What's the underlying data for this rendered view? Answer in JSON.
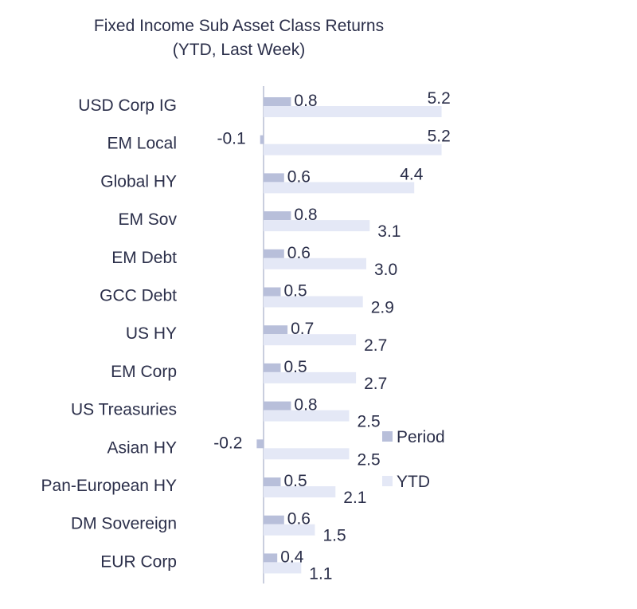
{
  "chart_data": {
    "type": "bar",
    "orientation": "horizontal",
    "title_line1": "Fixed Income Sub Asset Class Returns",
    "title_line2": "(YTD, Last Week)",
    "categories": [
      "USD Corp IG",
      "EM Local",
      "Global HY",
      "EM Sov",
      "EM Debt",
      "GCC Debt",
      "US HY",
      "EM Corp",
      "US Treasuries",
      "Asian HY",
      "Pan-European HY",
      "DM Sovereign",
      "EUR Corp"
    ],
    "series": [
      {
        "name": "Period",
        "color": "#b8bfda",
        "values": [
          0.8,
          -0.1,
          0.6,
          0.8,
          0.6,
          0.5,
          0.7,
          0.5,
          0.8,
          -0.2,
          0.5,
          0.6,
          0.4
        ],
        "labels": [
          "0.8",
          "-0.1",
          "0.6",
          "0.8",
          "0.6",
          "0.5",
          "0.7",
          "0.5",
          "0.8",
          "-0.2",
          "0.5",
          "0.6",
          "0.4"
        ]
      },
      {
        "name": "YTD",
        "color": "#e4e8f6",
        "values": [
          5.2,
          5.2,
          4.4,
          3.1,
          3.0,
          2.9,
          2.7,
          2.7,
          2.5,
          2.5,
          2.1,
          1.5,
          1.1
        ],
        "labels": [
          "5.2",
          "5.2",
          "4.4",
          "3.1",
          "3.0",
          "2.9",
          "2.7",
          "2.7",
          "2.5",
          "2.5",
          "2.1",
          "1.5",
          "1.1"
        ]
      }
    ],
    "legend_position": "right",
    "axis_color": "#c9cede",
    "text_color": "#2b2f4a"
  }
}
